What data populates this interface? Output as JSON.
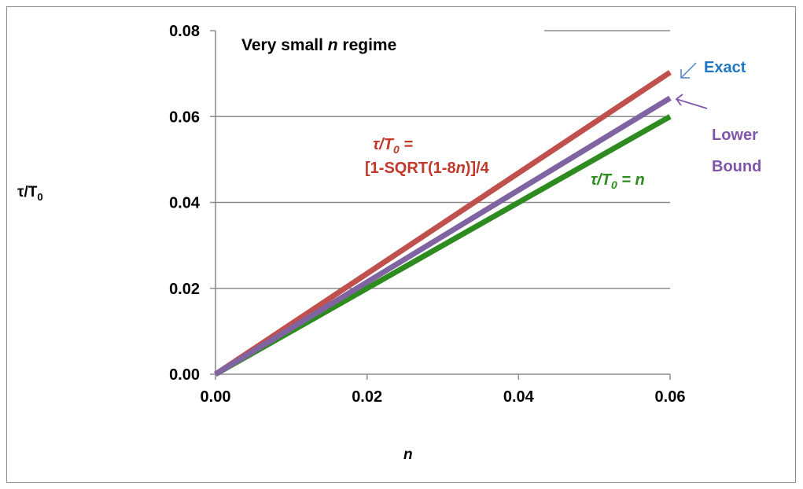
{
  "chart_data": {
    "type": "line",
    "title": "Very small n regime",
    "xlabel": "n",
    "ylabel": "τ/T0",
    "xlim": [
      0,
      0.06
    ],
    "ylim": [
      0,
      0.08
    ],
    "x_ticks": [
      "0.00",
      "0.02",
      "0.04",
      "0.06"
    ],
    "y_ticks": [
      "0.00",
      "0.02",
      "0.04",
      "0.06",
      "0.08"
    ],
    "grid": "horizontal",
    "series": [
      {
        "name": "Exact",
        "color": "#c0504d",
        "x": [
          0,
          0.06
        ],
        "y": [
          0,
          0.0703
        ]
      },
      {
        "name": "Lower Bound",
        "color": "#8064a2",
        "x": [
          0,
          0.06
        ],
        "y": [
          0,
          0.0643
        ]
      },
      {
        "name": "τ/T0 = n",
        "color": "#2e8b1f",
        "x": [
          0,
          0.06
        ],
        "y": [
          0,
          0.06
        ]
      }
    ],
    "annotations": {
      "exact_label": "Exact",
      "lower_bound_label": [
        "Lower",
        "Bound"
      ],
      "formula_exact": [
        "τ/T",
        "0",
        " =",
        "[1-SQRT(1-8",
        "n",
        ")]/4"
      ],
      "formula_n": [
        "τ/T",
        "0",
        " = ",
        "n"
      ]
    },
    "colors": {
      "exact_label": "#1f77c4",
      "lower_bound_label": "#7f56a8",
      "formula_exact": "#c0392b",
      "formula_n": "#2e8b1f"
    }
  }
}
